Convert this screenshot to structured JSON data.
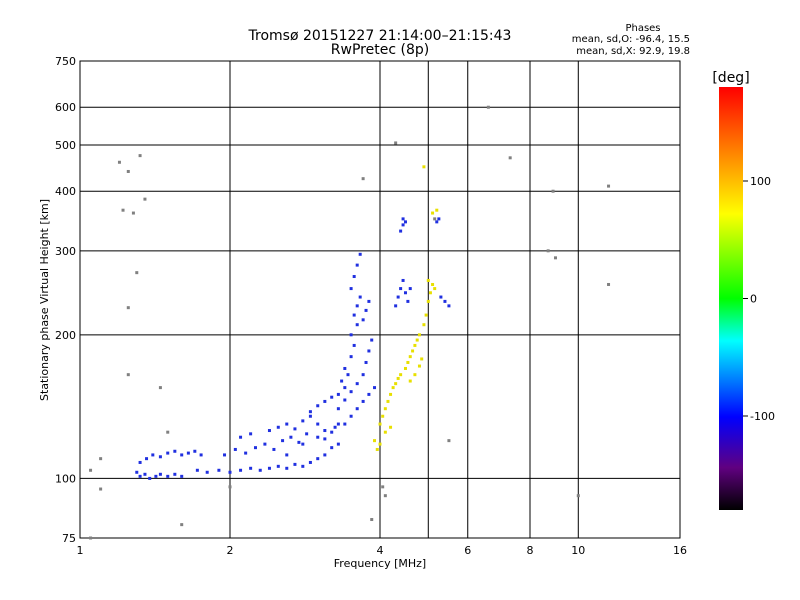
{
  "chart_data": {
    "type": "scatter",
    "title": "Tromsø 20151227 21:14:00–21:15:43",
    "subtitle": "RwPretec (8p)",
    "xlabel": "Frequency [MHz]",
    "ylabel": "Stationary phase Virtual Height [km]",
    "x_scale": "log",
    "y_scale": "log",
    "xlim": [
      1,
      16
    ],
    "ylim": [
      75,
      750
    ],
    "x_ticks": [
      1,
      2,
      4,
      8,
      16
    ],
    "x_gridlines": [
      1,
      2,
      4,
      5,
      6,
      8,
      10,
      16
    ],
    "x_tick_labels": [
      "1",
      "2",
      "4",
      "6",
      "8",
      "10",
      "16"
    ],
    "x_tick_values": [
      1,
      2,
      4,
      6,
      8,
      10,
      16
    ],
    "y_tick_labels": [
      "75",
      "100",
      "200",
      "300",
      "400",
      "500",
      "600",
      "750"
    ],
    "y_tick_values": [
      75,
      100,
      200,
      300,
      400,
      500,
      600,
      750
    ],
    "grid": true,
    "stats": {
      "header": "Phases",
      "o_line": "mean, sd,O: -96.4, 15.5",
      "x_line": "mean, sd,X:  92.9, 19.8"
    },
    "colorbar": {
      "label": "[deg]",
      "range": [
        -180,
        180
      ],
      "tick_labels": [
        "100",
        "0",
        "-100"
      ],
      "tick_values": [
        100,
        0,
        -100
      ]
    },
    "series": [
      {
        "name": "O-mode echoes (blue)",
        "color": "#2030e0",
        "points": [
          [
            1.3,
            103
          ],
          [
            1.32,
            101
          ],
          [
            1.35,
            102
          ],
          [
            1.38,
            100
          ],
          [
            1.42,
            101
          ],
          [
            1.45,
            102
          ],
          [
            1.5,
            101
          ],
          [
            1.55,
            102
          ],
          [
            1.6,
            101
          ],
          [
            1.32,
            108
          ],
          [
            1.36,
            110
          ],
          [
            1.4,
            112
          ],
          [
            1.45,
            111
          ],
          [
            1.5,
            113
          ],
          [
            1.55,
            114
          ],
          [
            1.6,
            112
          ],
          [
            1.65,
            113
          ],
          [
            1.7,
            114
          ],
          [
            1.75,
            112
          ],
          [
            1.72,
            104
          ],
          [
            1.8,
            103
          ],
          [
            1.9,
            104
          ],
          [
            2.0,
            103
          ],
          [
            2.1,
            104
          ],
          [
            2.2,
            105
          ],
          [
            2.3,
            104
          ],
          [
            2.4,
            105
          ],
          [
            2.5,
            106
          ],
          [
            2.6,
            105
          ],
          [
            2.7,
            107
          ],
          [
            2.8,
            106
          ],
          [
            2.9,
            108
          ],
          [
            1.95,
            112
          ],
          [
            2.05,
            115
          ],
          [
            2.15,
            113
          ],
          [
            2.25,
            116
          ],
          [
            2.35,
            118
          ],
          [
            2.45,
            115
          ],
          [
            2.55,
            120
          ],
          [
            2.65,
            122
          ],
          [
            2.75,
            119
          ],
          [
            2.85,
            124
          ],
          [
            2.1,
            122
          ],
          [
            2.2,
            124
          ],
          [
            2.4,
            126
          ],
          [
            2.5,
            128
          ],
          [
            2.6,
            130
          ],
          [
            2.7,
            127
          ],
          [
            2.8,
            132
          ],
          [
            2.9,
            135
          ],
          [
            3.0,
            130
          ],
          [
            3.0,
            110
          ],
          [
            3.1,
            112
          ],
          [
            3.2,
            116
          ],
          [
            3.3,
            118
          ],
          [
            3.1,
            121
          ],
          [
            3.2,
            125
          ],
          [
            3.25,
            128
          ],
          [
            2.6,
            112
          ],
          [
            2.8,
            118
          ],
          [
            3.0,
            122
          ],
          [
            3.1,
            126
          ],
          [
            3.3,
            130
          ],
          [
            2.9,
            138
          ],
          [
            3.0,
            142
          ],
          [
            3.1,
            145
          ],
          [
            3.2,
            148
          ],
          [
            3.3,
            150
          ],
          [
            3.4,
            155
          ],
          [
            3.35,
            160
          ],
          [
            3.45,
            165
          ],
          [
            3.4,
            170
          ],
          [
            3.5,
            180
          ],
          [
            3.55,
            190
          ],
          [
            3.5,
            200
          ],
          [
            3.6,
            210
          ],
          [
            3.55,
            220
          ],
          [
            3.6,
            230
          ],
          [
            3.65,
            240
          ],
          [
            3.5,
            250
          ],
          [
            3.55,
            265
          ],
          [
            3.6,
            280
          ],
          [
            3.65,
            295
          ],
          [
            3.3,
            140
          ],
          [
            3.4,
            146
          ],
          [
            3.5,
            152
          ],
          [
            3.6,
            158
          ],
          [
            3.7,
            165
          ],
          [
            3.75,
            175
          ],
          [
            3.8,
            185
          ],
          [
            3.85,
            195
          ],
          [
            3.4,
            130
          ],
          [
            3.5,
            135
          ],
          [
            3.6,
            140
          ],
          [
            3.7,
            145
          ],
          [
            3.8,
            150
          ],
          [
            3.9,
            155
          ],
          [
            3.7,
            215
          ],
          [
            3.75,
            225
          ],
          [
            3.8,
            235
          ],
          [
            4.3,
            230
          ],
          [
            4.35,
            240
          ],
          [
            4.4,
            250
          ],
          [
            4.45,
            260
          ],
          [
            4.5,
            245
          ],
          [
            4.55,
            235
          ],
          [
            4.6,
            250
          ],
          [
            4.4,
            330
          ],
          [
            4.45,
            340
          ],
          [
            4.5,
            345
          ],
          [
            4.45,
            350
          ],
          [
            5.3,
            240
          ],
          [
            5.4,
            235
          ],
          [
            5.5,
            230
          ],
          [
            5.2,
            345
          ],
          [
            5.25,
            350
          ]
        ]
      },
      {
        "name": "X-mode echoes (yellow)",
        "color": "#e8e000",
        "points": [
          [
            4.0,
            130
          ],
          [
            4.05,
            135
          ],
          [
            4.1,
            140
          ],
          [
            4.15,
            145
          ],
          [
            4.2,
            150
          ],
          [
            4.25,
            155
          ],
          [
            4.3,
            158
          ],
          [
            4.35,
            162
          ],
          [
            4.4,
            165
          ],
          [
            4.5,
            170
          ],
          [
            4.55,
            175
          ],
          [
            4.6,
            180
          ],
          [
            4.65,
            185
          ],
          [
            4.7,
            190
          ],
          [
            4.75,
            195
          ],
          [
            4.8,
            200
          ],
          [
            4.9,
            210
          ],
          [
            4.95,
            220
          ],
          [
            5.0,
            235
          ],
          [
            5.05,
            245
          ],
          [
            5.1,
            255
          ],
          [
            5.0,
            260
          ],
          [
            5.15,
            250
          ],
          [
            3.9,
            120
          ],
          [
            4.0,
            118
          ],
          [
            4.1,
            125
          ],
          [
            4.2,
            128
          ],
          [
            3.95,
            115
          ],
          [
            4.6,
            160
          ],
          [
            4.7,
            165
          ],
          [
            4.8,
            172
          ],
          [
            4.85,
            178
          ],
          [
            5.1,
            360
          ],
          [
            5.2,
            365
          ],
          [
            4.9,
            450
          ]
        ]
      },
      {
        "name": "Scattered outliers",
        "color": "#808080",
        "points": [
          [
            1.05,
            75
          ],
          [
            1.1,
            95
          ],
          [
            1.1,
            110
          ],
          [
            1.05,
            104
          ],
          [
            1.2,
            460
          ],
          [
            1.22,
            365
          ],
          [
            1.25,
            440
          ],
          [
            1.28,
            360
          ],
          [
            1.32,
            475
          ],
          [
            1.35,
            385
          ],
          [
            1.3,
            270
          ],
          [
            1.25,
            228
          ],
          [
            1.25,
            165
          ],
          [
            1.45,
            155
          ],
          [
            1.5,
            125
          ],
          [
            1.6,
            80
          ],
          [
            2.0,
            96
          ],
          [
            3.7,
            425
          ],
          [
            3.85,
            82
          ],
          [
            4.1,
            92
          ],
          [
            4.3,
            505
          ],
          [
            5.15,
            350
          ],
          [
            6.6,
            600
          ],
          [
            7.3,
            470
          ],
          [
            8.7,
            300
          ],
          [
            9.0,
            290
          ],
          [
            8.9,
            400
          ],
          [
            10.0,
            92
          ],
          [
            11.5,
            410
          ],
          [
            11.5,
            255
          ],
          [
            5.5,
            120
          ],
          [
            4.05,
            96
          ]
        ]
      }
    ]
  }
}
